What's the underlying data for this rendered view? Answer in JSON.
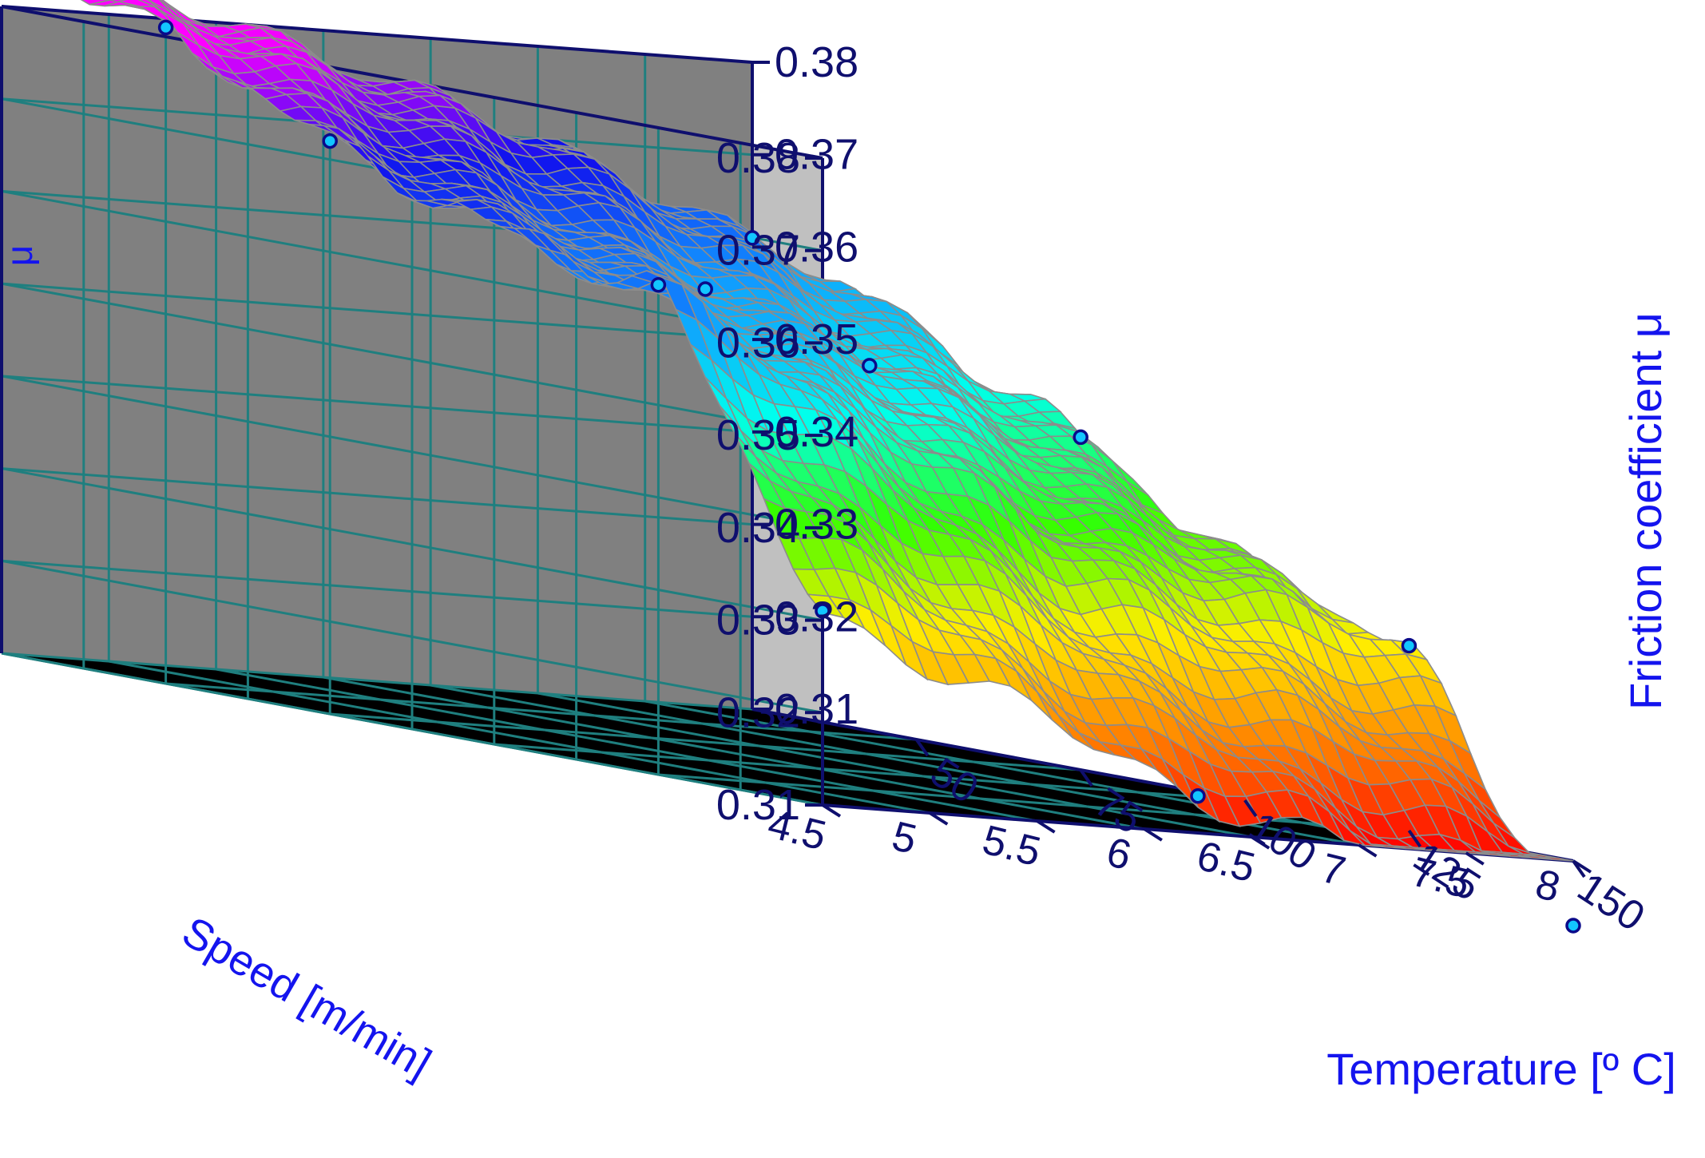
{
  "chart_data": {
    "type": "surface3d",
    "zlabel_left": "μ",
    "zlabel_right": "Friction coefficient μ",
    "xlabel": "Speed [m/min]",
    "ylabel": "Temperature [º C]",
    "speed_ticks": [
      "4.5",
      "5",
      "5.5",
      "6",
      "6.5",
      "7",
      "7.5",
      "8"
    ],
    "temperature_ticks": [
      "150",
      "125",
      "100",
      "75",
      "50"
    ],
    "z_ticks": [
      "0.31",
      "0.32",
      "0.33",
      "0.34",
      "0.35",
      "0.36",
      "0.37",
      "0.38"
    ],
    "xlim": [
      4.5,
      8.0
    ],
    "ylim": [
      25,
      150
    ],
    "zlim": [
      0.31,
      0.38
    ],
    "grid": true,
    "colormap": [
      "#ff0000",
      "#ff8800",
      "#ffee00",
      "#33ff00",
      "#00ffee",
      "#1199ff",
      "#1111ee",
      "#ff00ff"
    ],
    "speed_grid": [
      4.5,
      6.25,
      8.0
    ],
    "temperature_grid": [
      25,
      50,
      75,
      100,
      125,
      150
    ],
    "mu_surface": [
      [
        0.386,
        0.381,
        0.372,
        0.366,
        0.363,
        0.331
      ],
      [
        0.375,
        0.371,
        0.359,
        0.354,
        0.34,
        0.314
      ],
      [
        0.361,
        0.354,
        0.346,
        0.335,
        0.33,
        0.303
      ]
    ],
    "measured_points": [
      {
        "speed": 4.5,
        "temperature": 25,
        "mu": 0.386
      },
      {
        "speed": 4.5,
        "temperature": 50,
        "mu": 0.381
      },
      {
        "speed": 4.5,
        "temperature": 75,
        "mu": 0.372
      },
      {
        "speed": 4.5,
        "temperature": 125,
        "mu": 0.363
      },
      {
        "speed": 4.5,
        "temperature": 150,
        "mu": 0.331
      },
      {
        "speed": 6.25,
        "temperature": 75,
        "mu": 0.359
      },
      {
        "speed": 6.25,
        "temperature": 100,
        "mu": 0.354
      },
      {
        "speed": 6.25,
        "temperature": 150,
        "mu": 0.314
      },
      {
        "speed": 8.0,
        "temperature": 25,
        "mu": 0.361
      },
      {
        "speed": 8.0,
        "temperature": 75,
        "mu": 0.346
      },
      {
        "speed": 8.0,
        "temperature": 125,
        "mu": 0.33
      },
      {
        "speed": 8.0,
        "temperature": 150,
        "mu": 0.303
      }
    ]
  }
}
